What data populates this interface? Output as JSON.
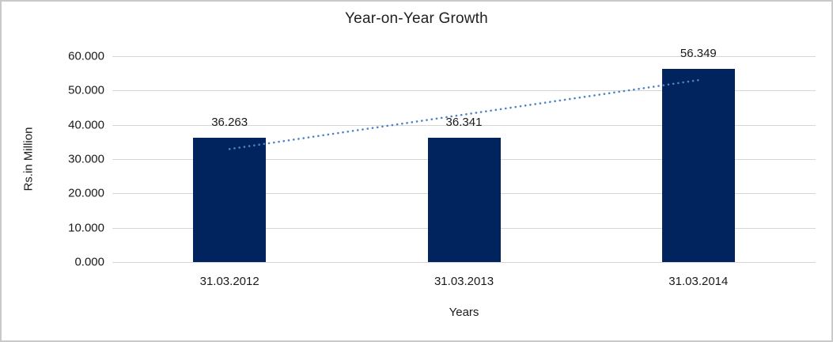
{
  "chart_data": {
    "type": "bar",
    "title": "Year-on-Year Growth",
    "categories": [
      "31.03.2012",
      "31.03.2013",
      "31.03.2014"
    ],
    "values": [
      36.263,
      36.341,
      56.349
    ],
    "data_labels": [
      "36.263",
      "36.341",
      "56.349"
    ],
    "xlabel": "Years",
    "ylabel": "Rs.in Million",
    "ylim": [
      0,
      60
    ],
    "ytick_step": 10,
    "ytick_labels": [
      "0.000",
      "10.000",
      "20.000",
      "30.000",
      "40.000",
      "50.000",
      "60.000"
    ],
    "grid": true,
    "legend": "none",
    "bar_color": "#02245E",
    "gridline_color": "#D6D6D6",
    "frame_border_color": "#C9C9C9",
    "text_color": "#1A1A1A",
    "trendline": {
      "type": "linear",
      "style": "dotted",
      "color": "#4D82C4"
    }
  }
}
